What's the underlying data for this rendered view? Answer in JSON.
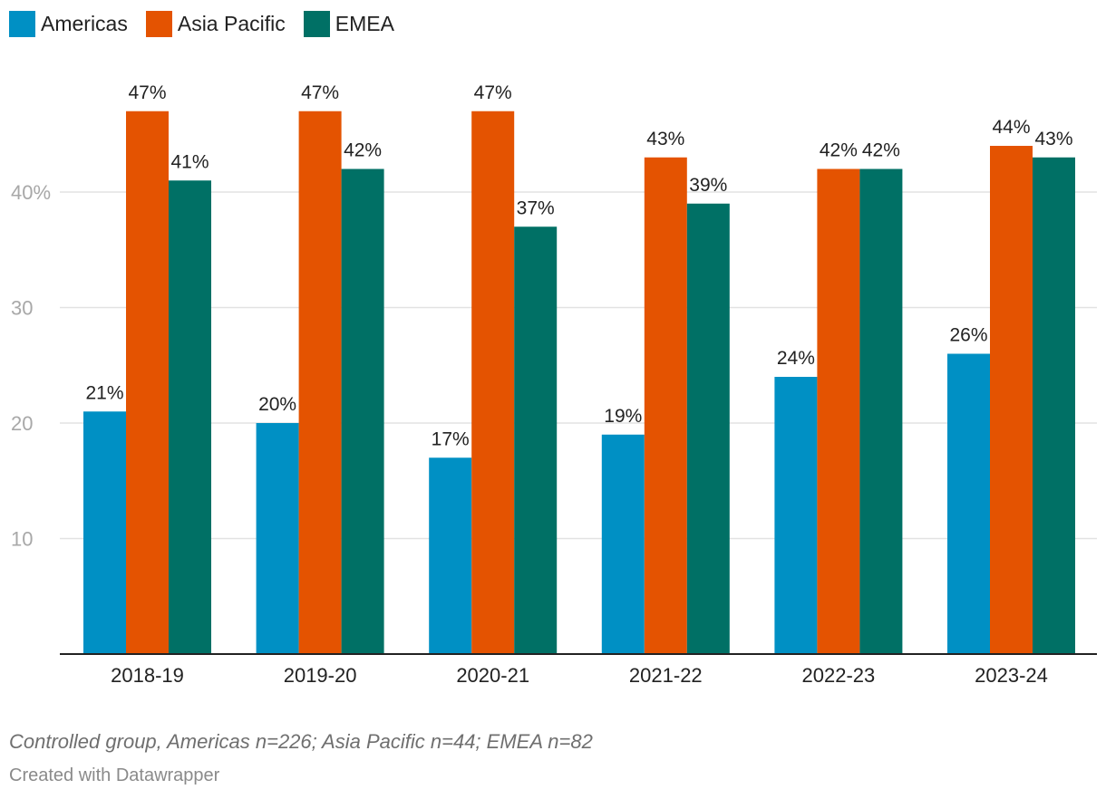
{
  "legend": [
    {
      "label": "Americas",
      "color": "#0090c4"
    },
    {
      "label": "Asia Pacific",
      "color": "#e45301"
    },
    {
      "label": "EMEA",
      "color": "#007065"
    }
  ],
  "chart_data": {
    "type": "bar",
    "categories": [
      "2018-19",
      "2019-20",
      "2020-21",
      "2021-22",
      "2022-23",
      "2023-24"
    ],
    "series": [
      {
        "name": "Americas",
        "color": "#0090c4",
        "values": [
          21,
          20,
          17,
          19,
          24,
          26
        ],
        "labels": [
          "21%",
          "20%",
          "17%",
          "19%",
          "24%",
          "26%"
        ]
      },
      {
        "name": "Asia Pacific",
        "color": "#e45301",
        "values": [
          47,
          47,
          47,
          43,
          42,
          44
        ],
        "labels": [
          "47%",
          "47%",
          "47%",
          "43%",
          "42%",
          "44%"
        ]
      },
      {
        "name": "EMEA",
        "color": "#007065",
        "values": [
          41,
          42,
          37,
          39,
          42,
          43
        ],
        "labels": [
          "41%",
          "42%",
          "37%",
          "39%",
          "42%",
          "43%"
        ]
      }
    ],
    "yticks": [
      10,
      20,
      30,
      40
    ],
    "ytick_labels": [
      "10",
      "20",
      "30",
      "40%"
    ],
    "ylim": [
      0,
      49
    ],
    "grid": true,
    "legend_position": "top-left"
  },
  "footer": {
    "note": "Controlled group, Americas n=226; Asia Pacific n=44; EMEA n=82",
    "credit": "Created with Datawrapper"
  }
}
